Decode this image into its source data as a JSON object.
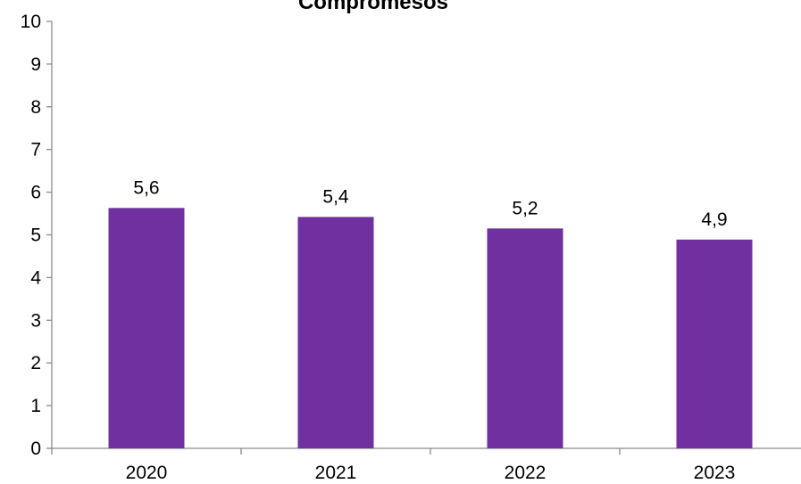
{
  "chart_data": {
    "type": "bar",
    "title": "Compromesos",
    "categories": [
      "2020",
      "2021",
      "2022",
      "2023"
    ],
    "values": [
      5.63,
      5.42,
      5.15,
      4.89
    ],
    "data_labels": [
      "5,6",
      "5,4",
      "5,2",
      "4,9"
    ],
    "y_ticks": [
      "0",
      "1",
      "2",
      "3",
      "4",
      "5",
      "6",
      "7",
      "8",
      "9",
      "10"
    ],
    "ylim": [
      0,
      10
    ],
    "xlabel": "",
    "ylabel": "",
    "grid": false,
    "legend": "none",
    "bar_color": "#7030a0"
  }
}
